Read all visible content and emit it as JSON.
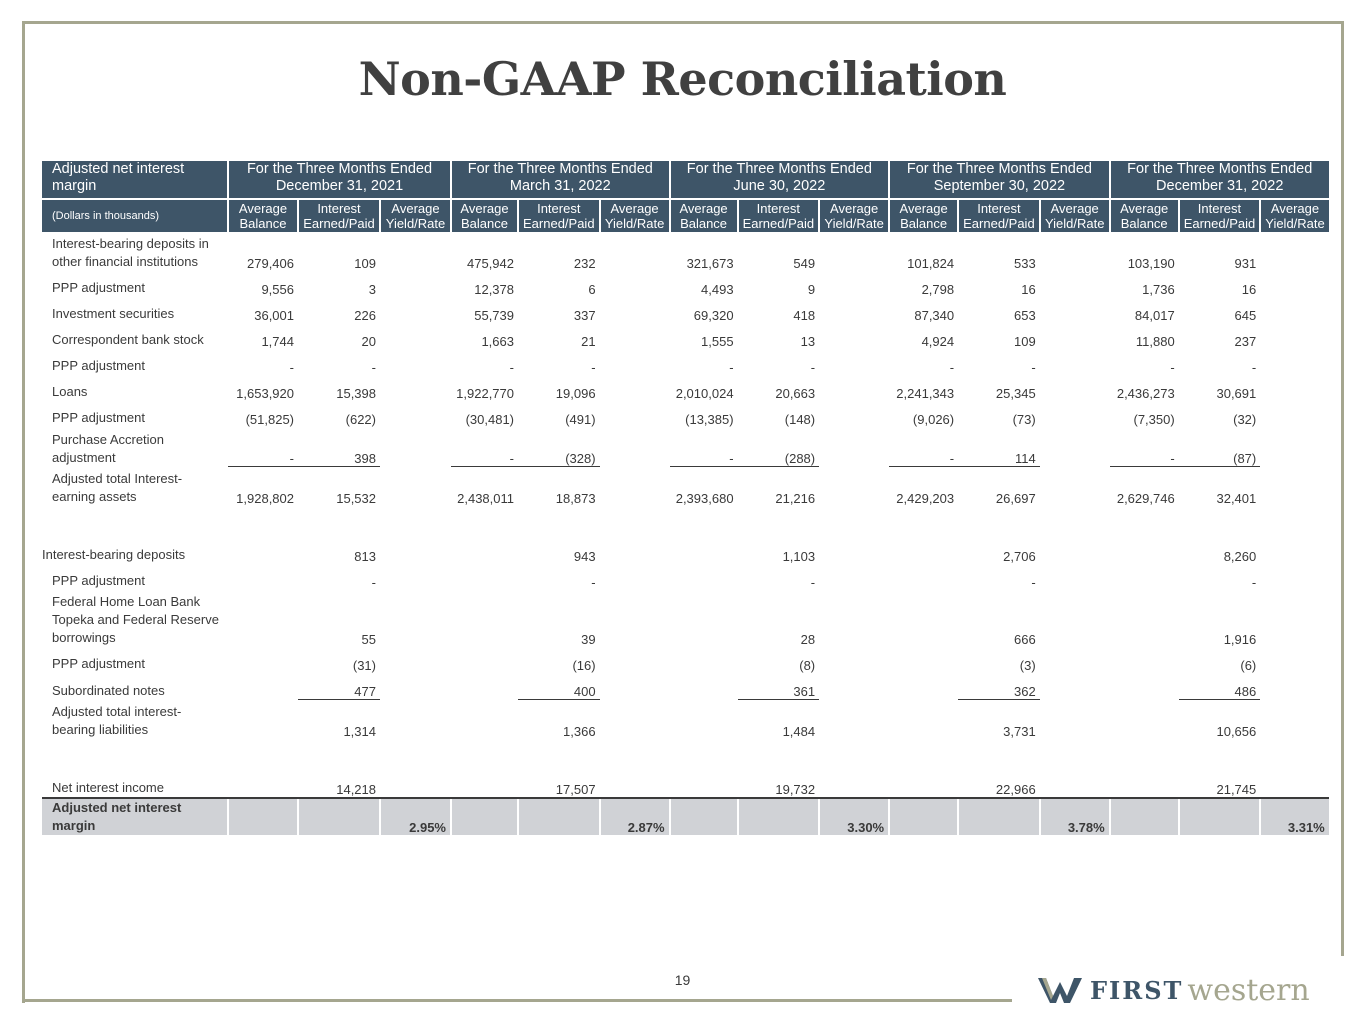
{
  "title": "Non-GAAP Reconciliation",
  "page_number": "19",
  "logo": {
    "first": "FIRST",
    "western": "western",
    "brand_navy": "#3e5568",
    "brand_sage": "#a5a68f"
  },
  "table": {
    "corner_title": "Adjusted net interest margin",
    "corner_sub": "(Dollars in thousands)",
    "periods": [
      "For the Three Months Ended December 31, 2021",
      "For the Three Months Ended March 31, 2022",
      "For the Three Months Ended June 30, 2022",
      "For the Three Months Ended September 30, 2022",
      "For the Three Months Ended December 31, 2022"
    ],
    "subheaders": [
      "Average Balance",
      "Interest Earned/Paid",
      "Average Yield/Rate"
    ],
    "rows": [
      {
        "label": "Interest-bearing deposits in other financial institutions",
        "values": [
          "279,406",
          "109",
          "",
          "475,942",
          "232",
          "",
          "321,673",
          "549",
          "",
          "101,824",
          "533",
          "",
          "103,190",
          "931",
          ""
        ]
      },
      {
        "label": "PPP adjustment",
        "values": [
          "9,556",
          "3",
          "",
          "12,378",
          "6",
          "",
          "4,493",
          "9",
          "",
          "2,798",
          "16",
          "",
          "1,736",
          "16",
          ""
        ]
      },
      {
        "label": "Investment securities",
        "values": [
          "36,001",
          "226",
          "",
          "55,739",
          "337",
          "",
          "69,320",
          "418",
          "",
          "87,340",
          "653",
          "",
          "84,017",
          "645",
          ""
        ]
      },
      {
        "label": "Correspondent bank stock",
        "values": [
          "1,744",
          "20",
          "",
          "1,663",
          "21",
          "",
          "1,555",
          "13",
          "",
          "4,924",
          "109",
          "",
          "11,880",
          "237",
          ""
        ]
      },
      {
        "label": "PPP adjustment",
        "values": [
          "-",
          "-",
          "",
          "-",
          "-",
          "",
          "-",
          "-",
          "",
          "-",
          "-",
          "",
          "-",
          "-",
          ""
        ]
      },
      {
        "label": "Loans",
        "values": [
          "1,653,920",
          "15,398",
          "",
          "1,922,770",
          "19,096",
          "",
          "2,010,024",
          "20,663",
          "",
          "2,241,343",
          "25,345",
          "",
          "2,436,273",
          "30,691",
          ""
        ]
      },
      {
        "label": "PPP adjustment",
        "values": [
          "(51,825)",
          "(622)",
          "",
          "(30,481)",
          "(491)",
          "",
          "(13,385)",
          "(148)",
          "",
          "(9,026)",
          "(73)",
          "",
          "(7,350)",
          "(32)",
          ""
        ]
      },
      {
        "label": "Purchase Accretion adjustment",
        "values": [
          "-",
          "398",
          "",
          "-",
          "(328)",
          "",
          "-",
          "(288)",
          "",
          "-",
          "114",
          "",
          "-",
          "(87)",
          ""
        ]
      },
      {
        "label": "Adjusted total Interest-earning assets",
        "values": [
          "1,928,802",
          "15,532",
          "",
          "2,438,011",
          "18,873",
          "",
          "2,393,680",
          "21,216",
          "",
          "2,429,203",
          "26,697",
          "",
          "2,629,746",
          "32,401",
          ""
        ]
      },
      {
        "label": "Interest-bearing deposits",
        "values": [
          "",
          "813",
          "",
          "",
          "943",
          "",
          "",
          "1,103",
          "",
          "",
          "2,706",
          "",
          "",
          "8,260",
          ""
        ]
      },
      {
        "label": "PPP adjustment",
        "values": [
          "",
          "-",
          "",
          "",
          "-",
          "",
          "",
          "-",
          "",
          "",
          "-",
          "",
          "",
          "-",
          ""
        ]
      },
      {
        "label": "Federal Home Loan Bank Topeka and Federal Reserve borrowings",
        "values": [
          "",
          "55",
          "",
          "",
          "39",
          "",
          "",
          "28",
          "",
          "",
          "666",
          "",
          "",
          "1,916",
          ""
        ]
      },
      {
        "label": "PPP adjustment",
        "values": [
          "",
          "(31)",
          "",
          "",
          "(16)",
          "",
          "",
          "(8)",
          "",
          "",
          "(3)",
          "",
          "",
          "(6)",
          ""
        ]
      },
      {
        "label": "Subordinated notes",
        "values": [
          "",
          "477",
          "",
          "",
          "400",
          "",
          "",
          "361",
          "",
          "",
          "362",
          "",
          "",
          "486",
          ""
        ]
      },
      {
        "label": "Adjusted total interest-bearing liabilities",
        "values": [
          "",
          "1,314",
          "",
          "",
          "1,366",
          "",
          "",
          "1,484",
          "",
          "",
          "3,731",
          "",
          "",
          "10,656",
          ""
        ]
      },
      {
        "label": "Net interest income",
        "values": [
          "",
          "14,218",
          "",
          "",
          "17,507",
          "",
          "",
          "19,732",
          "",
          "",
          "22,966",
          "",
          "",
          "21,745",
          ""
        ]
      },
      {
        "label": "Adjusted net interest margin",
        "values": [
          "",
          "",
          "2.95%",
          "",
          "",
          "2.87%",
          "",
          "",
          "3.30%",
          "",
          "",
          "3.78%",
          "",
          "",
          "3.31%"
        ]
      }
    ]
  }
}
